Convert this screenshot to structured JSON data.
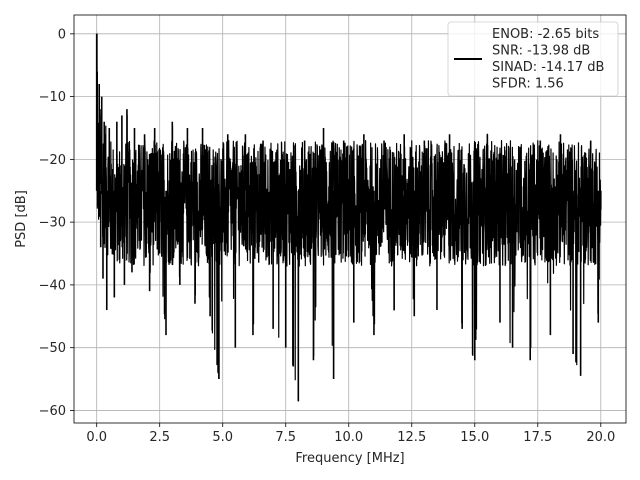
{
  "chart_data": {
    "type": "line",
    "title": "",
    "xlabel": "Frequency [MHz]",
    "ylabel": "PSD [dB]",
    "xlim": [
      -0.9,
      21.0
    ],
    "ylim": [
      -62,
      3
    ],
    "xticks": [
      0.0,
      2.5,
      5.0,
      7.5,
      10.0,
      12.5,
      15.0,
      17.5,
      20.0
    ],
    "xtick_labels": [
      "0.0",
      "2.5",
      "5.0",
      "7.5",
      "10.0",
      "12.5",
      "15.0",
      "17.5",
      "20.0"
    ],
    "yticks": [
      0,
      -10,
      -20,
      -30,
      -40,
      -50,
      -60
    ],
    "ytick_labels": [
      "0",
      "−10",
      "−20",
      "−30",
      "−40",
      "−50",
      "−60"
    ],
    "grid": true,
    "legend_position": "top-right",
    "legend_lines": [
      "ENOB: -2.65 bits",
      "SNR: -13.98 dB",
      "SINAD: -14.17 dB",
      "SFDR: 1.56"
    ],
    "series": [
      {
        "color": "#000000",
        "x": [
          0.0,
          0.02,
          0.05,
          0.08,
          0.1,
          0.13,
          0.16,
          0.2,
          0.25,
          0.3,
          0.35,
          0.4,
          0.5,
          0.6,
          0.7,
          0.8,
          0.9,
          1.0,
          1.1,
          1.2,
          1.4,
          1.5,
          1.7,
          1.9,
          2.1,
          2.3,
          2.5,
          2.75,
          3.0,
          3.3,
          3.6,
          3.9,
          4.2,
          4.5,
          4.85,
          5.2,
          5.5,
          5.9,
          6.2,
          6.6,
          7.0,
          7.5,
          7.8,
          8.0,
          8.25,
          8.6,
          9.0,
          9.4,
          9.8,
          10.2,
          10.6,
          11.0,
          11.4,
          11.8,
          12.2,
          12.6,
          13.0,
          13.5,
          14.0,
          14.5,
          15.0,
          15.5,
          16.0,
          16.5,
          16.8,
          17.2,
          17.6,
          18.0,
          18.4,
          18.9,
          19.2,
          19.6,
          19.9,
          20.0
        ],
        "y": [
          0.0,
          -6.0,
          -20.0,
          -26.0,
          -8.0,
          -12.0,
          -34.0,
          -10.0,
          -39.0,
          -14.0,
          -28.0,
          -44.0,
          -15.0,
          -30.0,
          -42.0,
          -14.0,
          -36.0,
          -13.0,
          -40.0,
          -12.0,
          -38.0,
          -15.0,
          -33.0,
          -16.0,
          -41.0,
          -15.0,
          -35.0,
          -48.0,
          -14.0,
          -40.0,
          -15.0,
          -43.0,
          -15.0,
          -45.0,
          -55.0,
          -16.0,
          -50.0,
          -16.0,
          -48.0,
          -17.0,
          -47.0,
          -50.0,
          -53.0,
          -58.5,
          -17.0,
          -52.0,
          -15.0,
          -55.0,
          -17.0,
          -46.0,
          -16.0,
          -48.0,
          -17.0,
          -44.0,
          -16.0,
          -45.0,
          -17.0,
          -44.0,
          -16.0,
          -47.0,
          -52.0,
          -16.0,
          -46.0,
          -50.0,
          -18.0,
          -52.0,
          -17.0,
          -48.0,
          -16.0,
          -51.0,
          -54.5,
          -17.0,
          -46.0,
          -28.0
        ]
      }
    ]
  }
}
